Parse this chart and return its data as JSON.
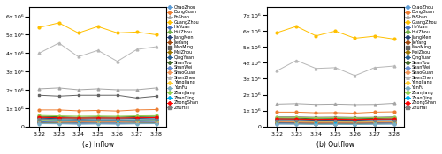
{
  "x": [
    3.22,
    3.23,
    3.24,
    3.25,
    3.26,
    3.27,
    3.28
  ],
  "cities": [
    "ChaoZhou",
    "DongGuan",
    "FoShan",
    "GuangZhou",
    "HeYuan",
    "HuiZhou",
    "JiangMen",
    "JieYang",
    "MaoMing",
    "MeiZhou",
    "QingYuan",
    "ShanTou",
    "ShanWei",
    "ShaoGuan",
    "ShenZhen",
    "YangJiang",
    "YunFu",
    "ZhanJiang",
    "ZhaoQing",
    "ZhongShan",
    "ZhuHai"
  ],
  "inflow": {
    "ChaoZhou": [
      200000,
      180000,
      150000,
      170000,
      160000,
      180000,
      190000
    ],
    "DongGuan": [
      900000,
      900000,
      850000,
      870000,
      840000,
      900000,
      920000
    ],
    "FoShan": [
      2050000,
      2100000,
      2000000,
      2050000,
      2000000,
      2000000,
      2100000
    ],
    "GuangZhou": [
      5400000,
      5650000,
      5100000,
      5450000,
      5100000,
      5150000,
      5000000
    ],
    "HeYuan": [
      250000,
      230000,
      200000,
      220000,
      210000,
      250000,
      260000
    ],
    "HuiZhou": [
      500000,
      480000,
      450000,
      470000,
      460000,
      490000,
      510000
    ],
    "JiangMen": [
      450000,
      430000,
      400000,
      420000,
      410000,
      440000,
      460000
    ],
    "JieYang": [
      300000,
      280000,
      250000,
      270000,
      260000,
      290000,
      300000
    ],
    "MaoMing": [
      1700000,
      1650000,
      1700000,
      1700000,
      1700000,
      1550000,
      1650000
    ],
    "MeiZhou": [
      200000,
      180000,
      160000,
      170000,
      160000,
      180000,
      190000
    ],
    "QingYuan": [
      350000,
      330000,
      300000,
      320000,
      310000,
      340000,
      360000
    ],
    "ShanTou": [
      550000,
      530000,
      500000,
      520000,
      510000,
      540000,
      560000
    ],
    "ShanWei": [
      180000,
      160000,
      140000,
      155000,
      145000,
      165000,
      175000
    ],
    "ShaoGuan": [
      300000,
      280000,
      260000,
      270000,
      260000,
      280000,
      290000
    ],
    "ShenZhen": [
      4000000,
      4550000,
      3800000,
      4150000,
      3550000,
      4200000,
      4350000
    ],
    "YangJiang": [
      350000,
      330000,
      310000,
      320000,
      310000,
      330000,
      340000
    ],
    "YunFu": [
      150000,
      140000,
      120000,
      130000,
      120000,
      140000,
      150000
    ],
    "ZhanJiang": [
      600000,
      580000,
      560000,
      570000,
      560000,
      580000,
      590000
    ],
    "ZhaoQing": [
      380000,
      360000,
      340000,
      350000,
      340000,
      360000,
      370000
    ],
    "ZhongShan": [
      500000,
      480000,
      460000,
      470000,
      460000,
      480000,
      490000
    ],
    "ZhuHai": [
      400000,
      380000,
      350000,
      365000,
      355000,
      370000,
      380000
    ]
  },
  "outflow": {
    "ChaoZhou": [
      200000,
      180000,
      160000,
      170000,
      160000,
      180000,
      190000
    ],
    "DongGuan": [
      900000,
      900000,
      860000,
      870000,
      840000,
      900000,
      920000
    ],
    "FoShan": [
      1400000,
      1430000,
      1380000,
      1400000,
      1370000,
      1380000,
      1450000
    ],
    "GuangZhou": [
      5900000,
      6300000,
      5700000,
      6000000,
      5550000,
      5680000,
      5500000
    ],
    "HeYuan": [
      230000,
      220000,
      200000,
      210000,
      200000,
      230000,
      240000
    ],
    "HuiZhou": [
      480000,
      460000,
      430000,
      440000,
      430000,
      460000,
      480000
    ],
    "JiangMen": [
      430000,
      420000,
      390000,
      400000,
      390000,
      420000,
      440000
    ],
    "JieYang": [
      280000,
      260000,
      240000,
      250000,
      240000,
      260000,
      270000
    ],
    "MaoMing": [
      600000,
      600000,
      580000,
      590000,
      570000,
      580000,
      600000
    ],
    "MeiZhou": [
      190000,
      180000,
      160000,
      165000,
      155000,
      170000,
      180000
    ],
    "QingYuan": [
      330000,
      320000,
      300000,
      310000,
      295000,
      320000,
      335000
    ],
    "ShanTou": [
      530000,
      520000,
      490000,
      500000,
      490000,
      510000,
      540000
    ],
    "ShanWei": [
      170000,
      160000,
      145000,
      150000,
      140000,
      155000,
      165000
    ],
    "ShaoGuan": [
      290000,
      280000,
      260000,
      265000,
      255000,
      270000,
      280000
    ],
    "ShenZhen": [
      3500000,
      4150000,
      3650000,
      3700000,
      3200000,
      3700000,
      3800000
    ],
    "YangJiang": [
      340000,
      330000,
      310000,
      315000,
      305000,
      320000,
      330000
    ],
    "YunFu": [
      140000,
      135000,
      120000,
      125000,
      115000,
      130000,
      140000
    ],
    "ZhanJiang": [
      580000,
      570000,
      550000,
      555000,
      545000,
      560000,
      570000
    ],
    "ZhaoQing": [
      360000,
      350000,
      335000,
      340000,
      330000,
      345000,
      355000
    ],
    "ZhongShan": [
      480000,
      465000,
      445000,
      455000,
      440000,
      460000,
      475000
    ],
    "ZhuHai": [
      380000,
      370000,
      345000,
      350000,
      340000,
      355000,
      365000
    ]
  },
  "colors": {
    "ChaoZhou": "#5b9bd5",
    "DongGuan": "#ed7d31",
    "FoShan": "#a5a5a5",
    "GuangZhou": "#ffc000",
    "HeYuan": "#4472c4",
    "HuiZhou": "#70ad47",
    "JiangMen": "#264478",
    "JieYang": "#9e480e",
    "MaoMing": "#636363",
    "MeiZhou": "#997300",
    "QingYuan": "#255e91",
    "ShanTou": "#43682b",
    "ShanWei": "#698ed0",
    "ShaoGuan": "#f1975a",
    "ShenZhen": "#b7b7b7",
    "YangJiang": "#ffcd33",
    "YunFu": "#7cafc4",
    "ZhanJiang": "#92d050",
    "ZhaoQing": "#00b0f0",
    "ZhongShan": "#ff0000",
    "ZhuHai": "#7f7f7f"
  },
  "markers": {
    "ChaoZhou": "o",
    "DongGuan": "o",
    "FoShan": "^",
    "GuangZhou": "o",
    "HeYuan": "o",
    "HuiZhou": "o",
    "JiangMen": "o",
    "JieYang": "o",
    "MaoMing": "s",
    "MeiZhou": "o",
    "QingYuan": "o",
    "ShanTou": "o",
    "ShanWei": "o",
    "ShaoGuan": "o",
    "ShenZhen": "^",
    "YangJiang": "o",
    "YunFu": "o",
    "ZhanJiang": "o",
    "ZhaoQing": "o",
    "ZhongShan": "o",
    "ZhuHai": "s"
  },
  "inflow_ylim": [
    0,
    6500000
  ],
  "outflow_ylim": [
    0,
    7500000
  ],
  "inflow_yticks": [
    0,
    1000000,
    2000000,
    3000000,
    4000000,
    5000000,
    6000000
  ],
  "outflow_yticks": [
    0,
    1000000,
    2000000,
    3000000,
    4000000,
    5000000,
    6000000,
    7000000
  ],
  "xlabel_inflow": "(a) Inflow",
  "xlabel_outflow": "(b) Outflow"
}
